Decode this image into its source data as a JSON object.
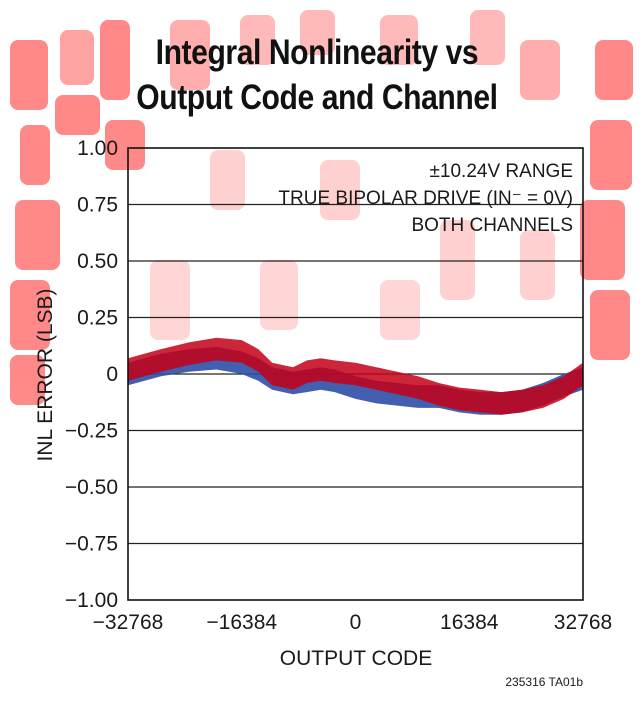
{
  "chart_data": {
    "type": "line",
    "title_lines": [
      "Integral Nonlinearity vs",
      "Output Code and Channel"
    ],
    "xlabel": "OUTPUT CODE",
    "ylabel": "INL ERROR (LSB)",
    "xlim": [
      -32768,
      32768
    ],
    "ylim": [
      -1.0,
      1.0
    ],
    "x_ticks": [
      -32768,
      -16384,
      0,
      16384,
      32768
    ],
    "x_tick_labels": [
      "−32768",
      "−16384",
      "0",
      "16384",
      "32768"
    ],
    "y_ticks": [
      1.0,
      0.75,
      0.5,
      0.25,
      0,
      -0.25,
      -0.5,
      -0.75,
      -1.0
    ],
    "y_tick_labels": [
      "1.00",
      "0.75",
      "0.50",
      "0.25",
      "0",
      "−0.25",
      "−0.50",
      "−0.75",
      "−1.00"
    ],
    "grid": "horizontal",
    "annotations": [
      "±10.24V RANGE",
      "TRUE BIPOLAR DRIVE (IN⁻ = 0V)",
      "BOTH CHANNELS"
    ],
    "figure_id": "235316 TA01b",
    "series": [
      {
        "color": "#2f4ea6",
        "band_width_lsb": 0.1,
        "x": [
          -32768,
          -28000,
          -24000,
          -20000,
          -16384,
          -14000,
          -12000,
          -9000,
          -7000,
          -5000,
          -3000,
          0,
          3000,
          6000,
          9000,
          12000,
          15000,
          18000,
          21000,
          24000,
          27000,
          30000,
          32768
        ],
        "values": [
          0.0,
          0.04,
          0.06,
          0.07,
          0.05,
          0.02,
          -0.02,
          -0.04,
          -0.03,
          -0.02,
          -0.03,
          -0.06,
          -0.08,
          -0.09,
          -0.1,
          -0.1,
          -0.12,
          -0.13,
          -0.13,
          -0.12,
          -0.09,
          -0.05,
          -0.02
        ]
      },
      {
        "color": "#c40018",
        "band_width_lsb": 0.1,
        "x": [
          -32768,
          -28000,
          -24000,
          -20000,
          -16384,
          -14000,
          -12000,
          -9000,
          -7000,
          -5000,
          -3000,
          0,
          3000,
          6000,
          9000,
          12000,
          15000,
          18000,
          21000,
          24000,
          27000,
          30000,
          32768
        ],
        "values": [
          0.02,
          0.06,
          0.09,
          0.11,
          0.1,
          0.06,
          0.0,
          -0.02,
          0.01,
          0.02,
          0.01,
          0.0,
          -0.02,
          -0.04,
          -0.06,
          -0.09,
          -0.11,
          -0.12,
          -0.13,
          -0.12,
          -0.1,
          -0.06,
          0.0
        ]
      }
    ]
  }
}
